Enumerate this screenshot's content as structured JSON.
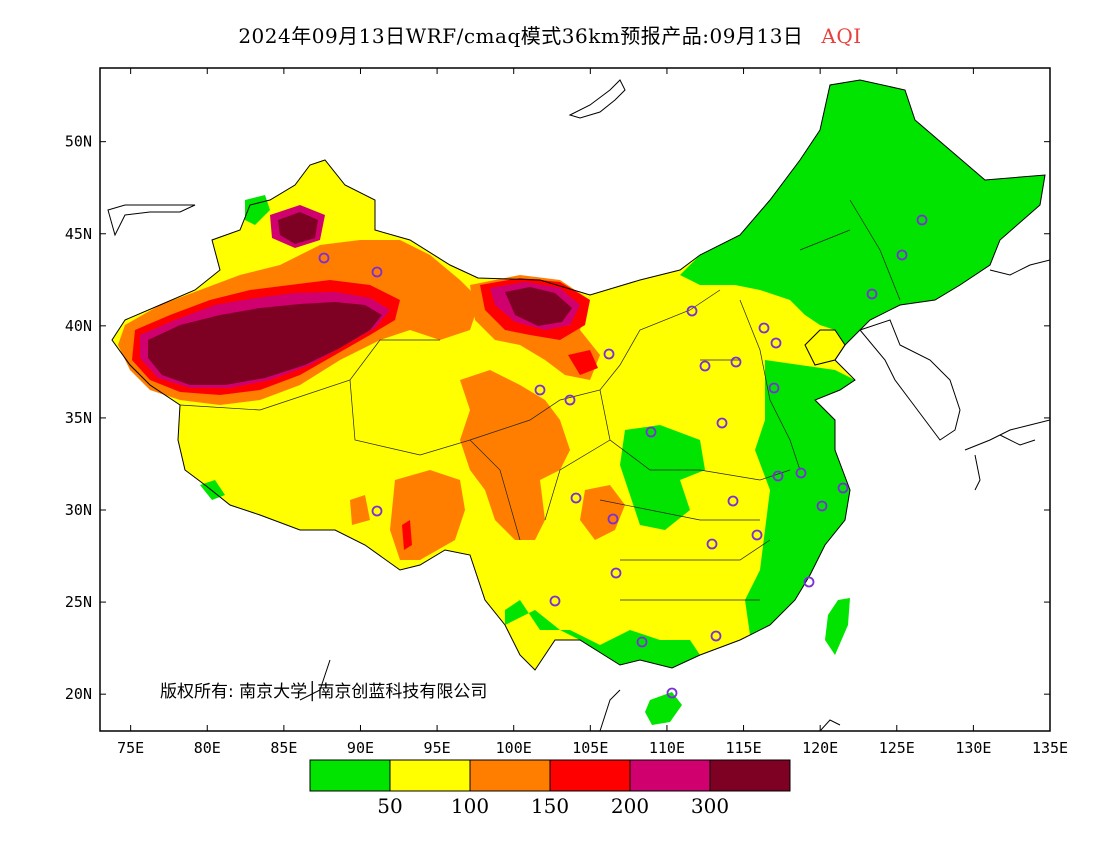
{
  "title": {
    "main": "2024年09月13日WRF/cmaq模式36km预报产品:09月13日",
    "variable": "AQI",
    "variable_color": "#e8413c"
  },
  "axes": {
    "lat_labels": [
      "50N",
      "45N",
      "40N",
      "35N",
      "30N",
      "25N",
      "20N"
    ],
    "lat_values": [
      50,
      45,
      40,
      35,
      30,
      25,
      20
    ],
    "lon_labels": [
      "75E",
      "80E",
      "85E",
      "90E",
      "95E",
      "100E",
      "105E",
      "110E",
      "115E",
      "120E",
      "125E",
      "130E",
      "135E"
    ],
    "lon_values": [
      75,
      80,
      85,
      90,
      95,
      100,
      105,
      110,
      115,
      120,
      125,
      130,
      135
    ],
    "lon_range": [
      73,
      135
    ],
    "lat_range": [
      18,
      54
    ]
  },
  "copyright": "版权所有: 南京大学│南京创蓝科技有限公司",
  "colorbar": {
    "colors": [
      "#00e400",
      "#ffff00",
      "#ff7e00",
      "#ff0000",
      "#d0006f",
      "#7e0023"
    ],
    "tick_labels": [
      "50",
      "100",
      "150",
      "200",
      "300"
    ]
  },
  "stations_color": "#7b2fd6"
}
